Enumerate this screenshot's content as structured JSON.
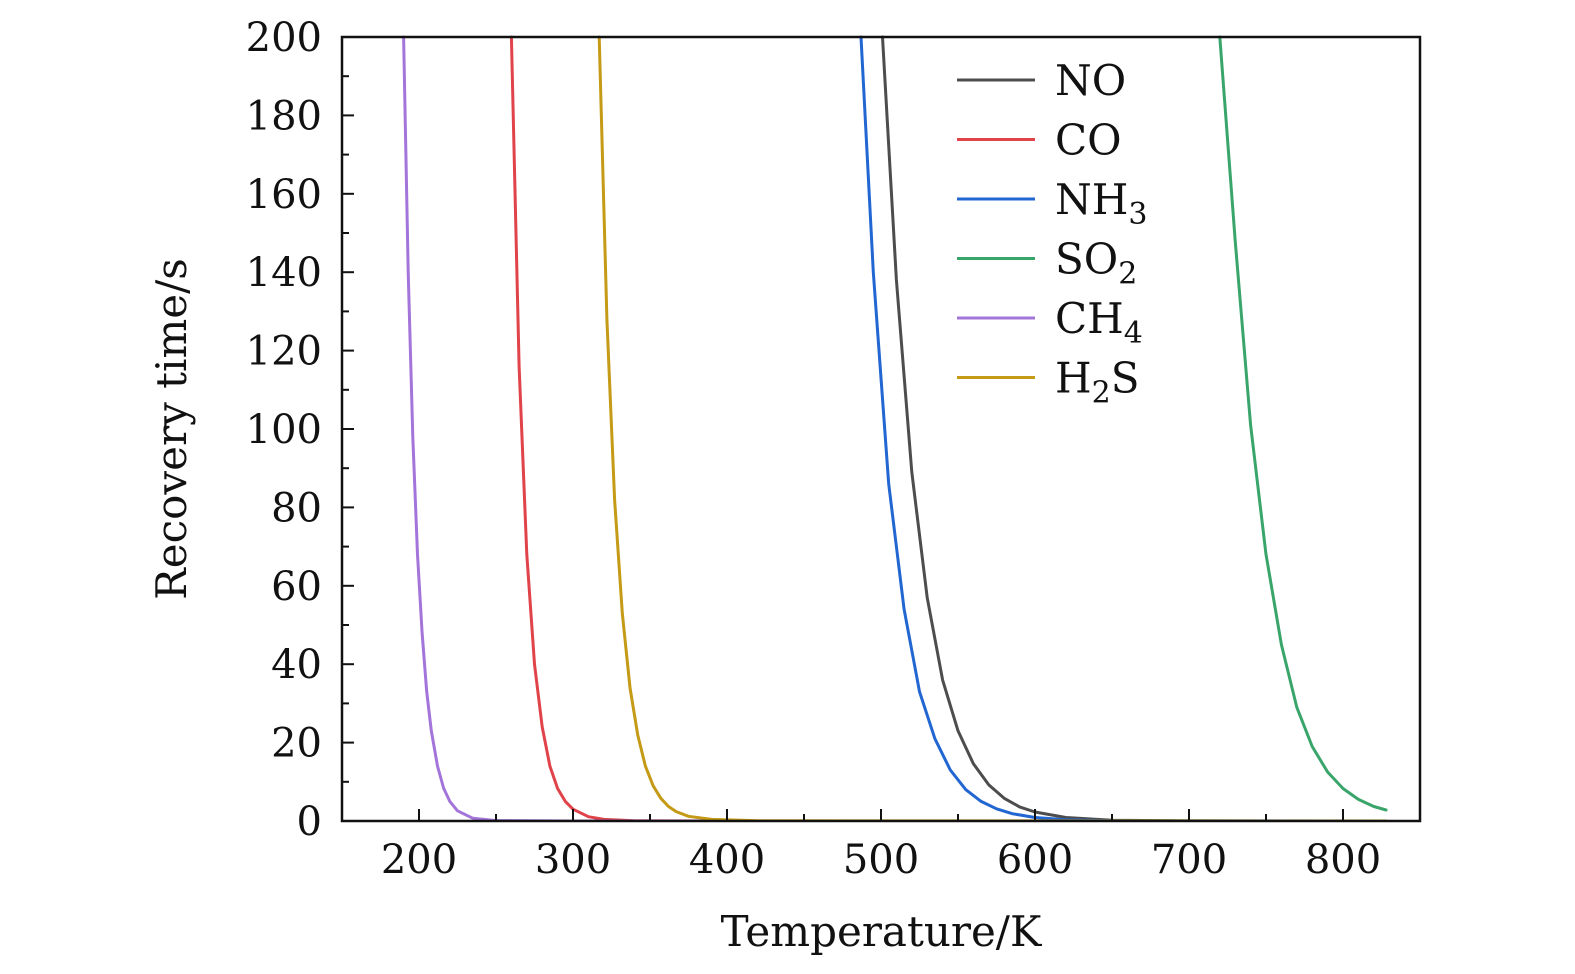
{
  "chart_data": {
    "type": "line",
    "title": "",
    "xlabel": "Temperature/K",
    "ylabel": "Recovery time/s",
    "xlim": [
      150,
      850
    ],
    "ylim": [
      0,
      200
    ],
    "x_ticks": [
      200,
      300,
      400,
      500,
      600,
      700,
      800
    ],
    "y_ticks": [
      0,
      20,
      40,
      60,
      80,
      100,
      120,
      140,
      160,
      180,
      200
    ],
    "x_minor_step": 50,
    "y_minor_step": 10,
    "grid": false,
    "legend_position": "top-right",
    "series": [
      {
        "name": "NO",
        "label_main": "NO",
        "label_sub": "",
        "color": "#4d4d4d",
        "x": [
          501,
          510,
          520,
          530,
          540,
          550,
          560,
          570,
          580,
          590,
          600,
          620,
          650,
          700,
          828
        ],
        "y": [
          200,
          138,
          89,
          57,
          36,
          23,
          14.6,
          9.2,
          5.8,
          3.6,
          2.3,
          0.9,
          0.2,
          0.02,
          0
        ]
      },
      {
        "name": "CO",
        "label_main": "CO",
        "label_sub": "",
        "color": "#e0434a",
        "x": [
          260,
          265,
          270,
          275,
          280,
          285,
          290,
          295,
          300,
          310,
          320,
          340,
          400,
          828
        ],
        "y": [
          200,
          116,
          68,
          40,
          24,
          14,
          8.3,
          5,
          3,
          1.1,
          0.4,
          0.06,
          0,
          0
        ]
      },
      {
        "name": "NH3",
        "label_main": "NH",
        "label_sub": "3",
        "color": "#2166d1",
        "x": [
          487,
          495,
          505,
          515,
          525,
          535,
          545,
          555,
          565,
          575,
          585,
          600,
          620,
          650,
          828
        ],
        "y": [
          200,
          140,
          86,
          54,
          33,
          21,
          13,
          8,
          5,
          3.1,
          1.9,
          0.9,
          0.3,
          0.05,
          0
        ]
      },
      {
        "name": "SO2",
        "label_main": "SO",
        "label_sub": "2",
        "color": "#3aa56b",
        "x": [
          720,
          730,
          740,
          750,
          760,
          770,
          780,
          790,
          800,
          810,
          820,
          828
        ],
        "y": [
          200,
          148,
          101,
          68,
          45,
          29,
          19,
          12.5,
          8.3,
          5.5,
          3.7,
          2.8
        ]
      },
      {
        "name": "CH4",
        "label_main": "CH",
        "label_sub": "4",
        "color": "#a374d9",
        "x": [
          190,
          193,
          196,
          199,
          202,
          205,
          208,
          212,
          216,
          220,
          225,
          235,
          250,
          300,
          828
        ],
        "y": [
          200,
          140,
          98,
          68,
          48,
          33,
          23,
          14,
          8.4,
          5,
          2.6,
          0.7,
          0.1,
          0,
          0
        ]
      },
      {
        "name": "H2S",
        "label_main": "H",
        "label_sub": "2",
        "label_tail": "S",
        "color": "#c49a16",
        "x": [
          317,
          322,
          327,
          332,
          337,
          342,
          347,
          352,
          357,
          362,
          367,
          375,
          390,
          420,
          828
        ],
        "y": [
          200,
          128,
          82,
          53,
          34,
          22,
          14,
          9,
          5.8,
          3.7,
          2.4,
          1.2,
          0.4,
          0.05,
          0
        ]
      }
    ]
  }
}
